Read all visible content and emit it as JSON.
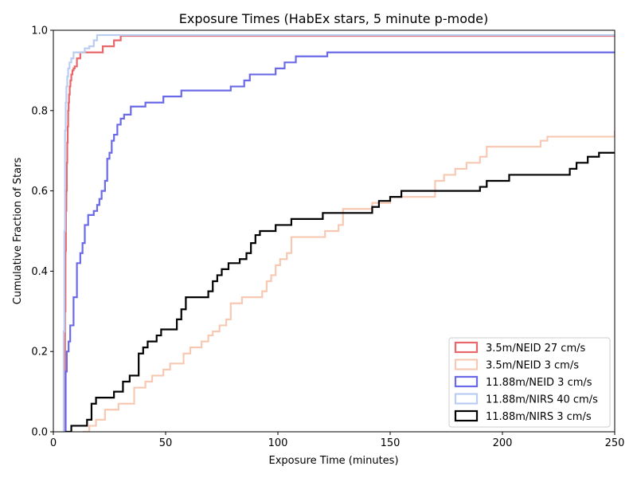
{
  "chart_data": {
    "type": "line",
    "title": "Exposure Times (HabEx stars, 5 minute p-mode)",
    "xlabel": "Exposure Time (minutes)",
    "ylabel": "Cumulative Fraction of Stars",
    "xlim": [
      0,
      250
    ],
    "ylim": [
      0,
      1.0
    ],
    "x_ticks": [
      0,
      50,
      100,
      150,
      200,
      250
    ],
    "y_ticks": [
      0.0,
      0.2,
      0.4,
      0.6,
      0.8,
      1.0
    ],
    "x_tick_labels": [
      "0",
      "50",
      "100",
      "150",
      "200",
      "250"
    ],
    "y_tick_labels": [
      "0.0",
      "0.2",
      "0.4",
      "0.6",
      "0.8",
      "1.0"
    ],
    "grid": false,
    "legend_position": "bottom-right",
    "step": true,
    "series": [
      {
        "name": "3.5m/NEID 27 cm/s",
        "color": "#e8676b",
        "x": [
          4.6,
          5.0,
          5.2,
          5.4,
          5.6,
          5.8,
          6.0,
          6.2,
          6.4,
          6.6,
          6.8,
          7.0,
          7.3,
          7.6,
          8.0,
          8.5,
          9.0,
          9.5,
          10.5,
          12.0,
          22.0,
          27.0,
          30.0,
          250
        ],
        "y": [
          0.0,
          0.15,
          0.3,
          0.45,
          0.55,
          0.6,
          0.67,
          0.72,
          0.76,
          0.8,
          0.82,
          0.84,
          0.86,
          0.875,
          0.89,
          0.9,
          0.905,
          0.91,
          0.93,
          0.945,
          0.96,
          0.975,
          0.986,
          0.986
        ]
      },
      {
        "name": "3.5m/NEID 3 cm/s",
        "color": "#f7c9b3",
        "x": [
          13,
          16,
          19,
          23,
          29,
          36,
          41,
          44,
          49,
          52,
          58,
          61,
          66,
          69,
          71,
          74,
          77,
          79,
          84,
          93,
          95,
          97,
          99,
          101,
          104,
          106,
          121,
          127,
          129,
          142,
          147,
          150,
          170,
          174,
          179,
          184,
          190,
          193,
          202,
          217,
          220,
          250
        ],
        "y": [
          0.0,
          0.015,
          0.03,
          0.055,
          0.07,
          0.11,
          0.125,
          0.14,
          0.155,
          0.17,
          0.195,
          0.21,
          0.225,
          0.24,
          0.25,
          0.265,
          0.28,
          0.32,
          0.335,
          0.35,
          0.375,
          0.39,
          0.415,
          0.43,
          0.445,
          0.485,
          0.5,
          0.515,
          0.555,
          0.57,
          0.57,
          0.585,
          0.625,
          0.64,
          0.655,
          0.67,
          0.685,
          0.71,
          0.71,
          0.725,
          0.735,
          0.75
        ]
      },
      {
        "name": "11.88m/NEID 3 cm/s",
        "color": "#6a6ae8",
        "x": [
          4.8,
          5.5,
          6.0,
          6.8,
          7.5,
          9.0,
          10.5,
          12.0,
          13.0,
          14.0,
          15.5,
          18.0,
          19.5,
          20.5,
          21.5,
          23.0,
          24.0,
          25.0,
          26.0,
          27.0,
          28.5,
          30.0,
          31.5,
          34.5,
          35.5,
          41.0,
          49.0,
          57.0,
          79.0,
          85.0,
          87.5,
          99.0,
          103.0,
          108.0,
          122.0,
          141.0,
          250
        ],
        "y": [
          0.0,
          0.15,
          0.2,
          0.225,
          0.265,
          0.335,
          0.42,
          0.445,
          0.47,
          0.515,
          0.54,
          0.55,
          0.565,
          0.58,
          0.6,
          0.625,
          0.68,
          0.695,
          0.725,
          0.74,
          0.765,
          0.78,
          0.79,
          0.81,
          0.81,
          0.82,
          0.835,
          0.85,
          0.86,
          0.875,
          0.89,
          0.905,
          0.92,
          0.935,
          0.945,
          0.945,
          0.945
        ]
      },
      {
        "name": "11.88m/NIRS 40 cm/s",
        "color": "#b9cdf2",
        "x": [
          4.3,
          4.6,
          4.9,
          5.2,
          5.5,
          5.8,
          6.2,
          6.6,
          7.2,
          8.0,
          9.0,
          10.5,
          14.0,
          16.0,
          18.0,
          19.5,
          250
        ],
        "y": [
          0.0,
          0.25,
          0.5,
          0.75,
          0.82,
          0.86,
          0.885,
          0.905,
          0.92,
          0.93,
          0.945,
          0.945,
          0.955,
          0.96,
          0.975,
          0.988,
          0.988
        ]
      },
      {
        "name": "11.88m/NIRS 3 cm/s",
        "color": "#000000",
        "x": [
          5.5,
          8.0,
          15.0,
          17.0,
          19.0,
          27.0,
          31.0,
          34.0,
          38.0,
          40.0,
          42.0,
          46.0,
          48.0,
          55.0,
          57.0,
          59.0,
          69.0,
          71.0,
          73.0,
          75.0,
          78.0,
          83.0,
          86.0,
          88.0,
          90.0,
          92.0,
          99.0,
          106.0,
          120.0,
          128.0,
          142.0,
          145.0,
          150.0,
          155.0,
          180.0,
          190.0,
          193.0,
          203.0,
          230.0,
          233.0,
          238.0,
          243.0,
          245.0,
          250
        ],
        "y": [
          0.0,
          0.015,
          0.03,
          0.07,
          0.085,
          0.1,
          0.125,
          0.14,
          0.195,
          0.21,
          0.225,
          0.24,
          0.255,
          0.28,
          0.305,
          0.335,
          0.35,
          0.375,
          0.39,
          0.405,
          0.42,
          0.43,
          0.445,
          0.47,
          0.49,
          0.5,
          0.515,
          0.53,
          0.545,
          0.545,
          0.56,
          0.575,
          0.585,
          0.6,
          0.6,
          0.61,
          0.625,
          0.64,
          0.655,
          0.67,
          0.685,
          0.695,
          0.695,
          0.695
        ]
      }
    ]
  }
}
